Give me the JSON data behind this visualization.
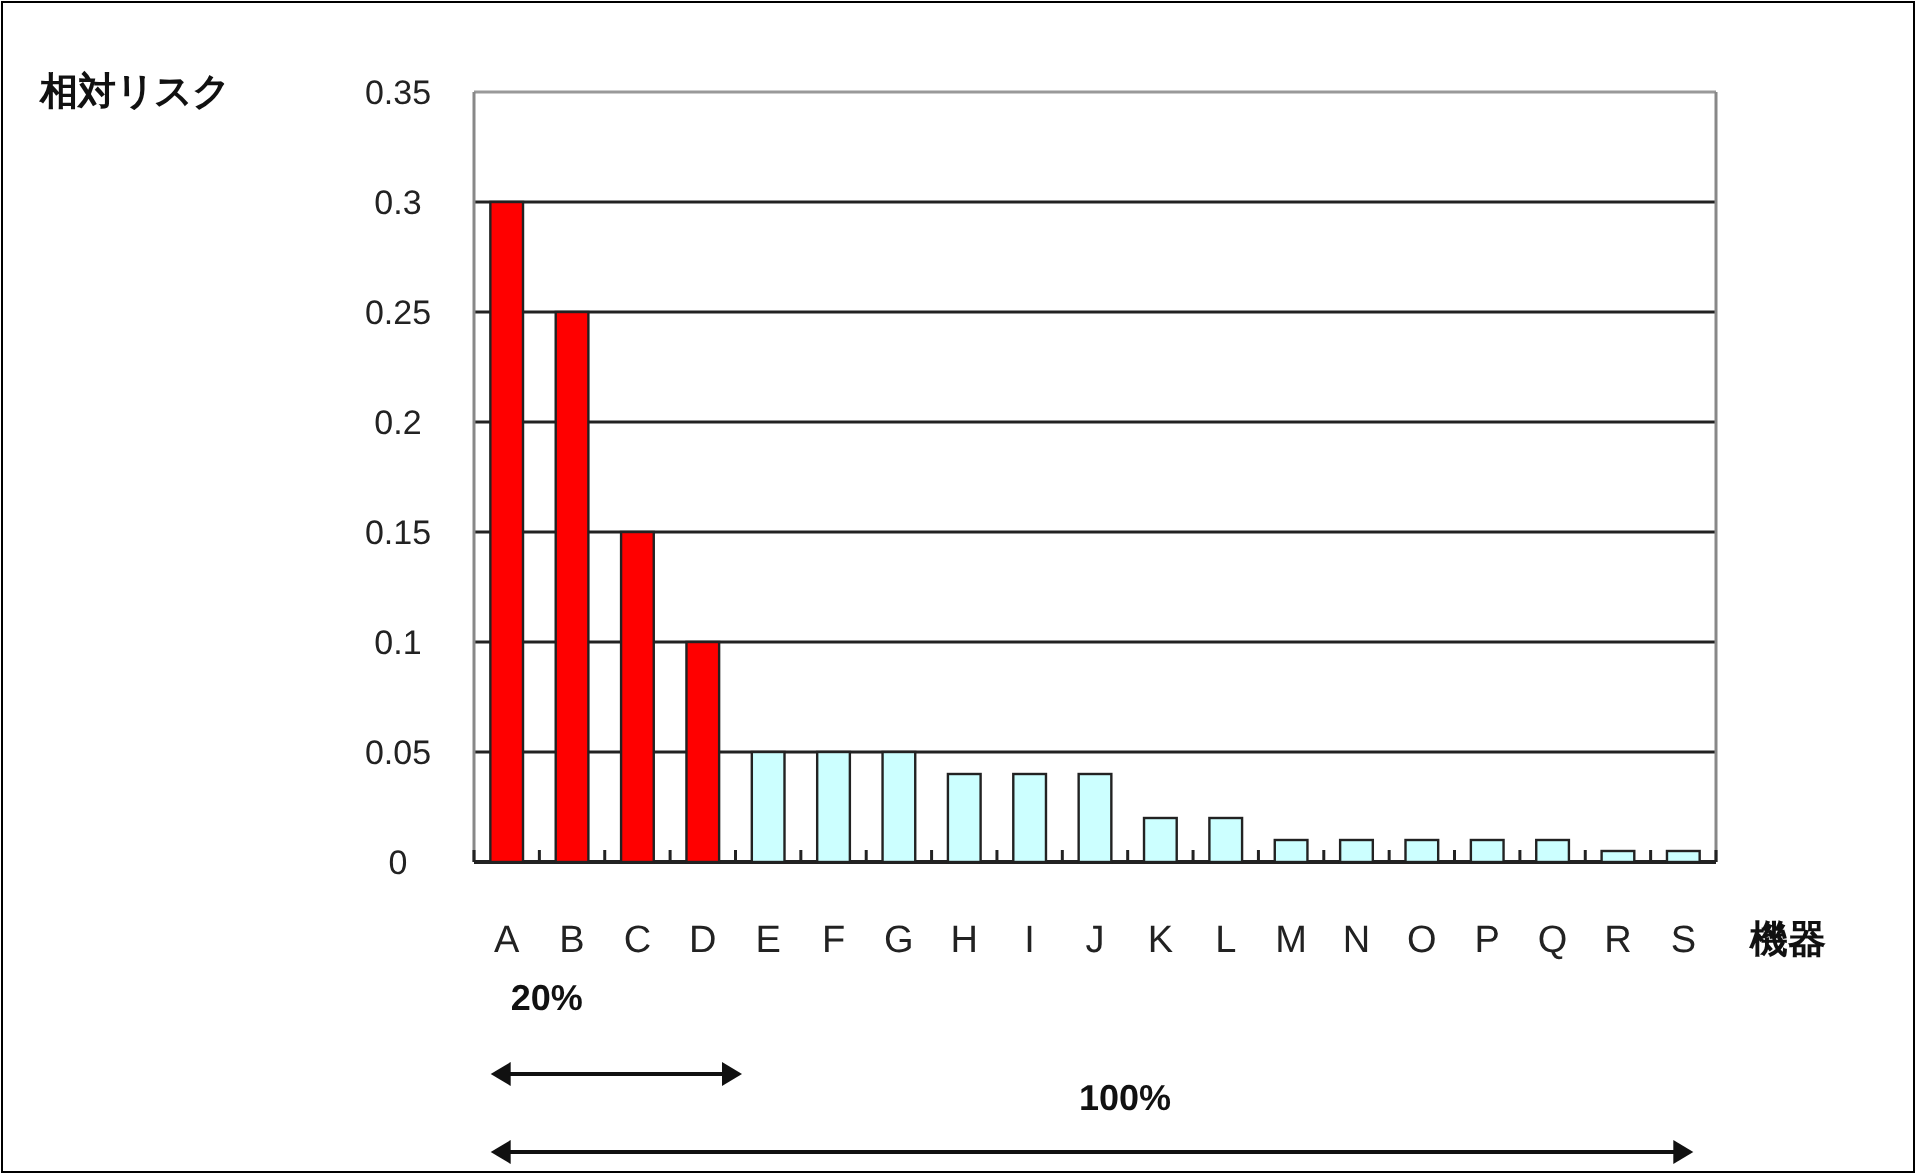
{
  "chart_data": {
    "type": "bar",
    "ylabel": "相対リスク",
    "xlabel": "機器",
    "categories": [
      "A",
      "B",
      "C",
      "D",
      "E",
      "F",
      "G",
      "H",
      "I",
      "J",
      "K",
      "L",
      "M",
      "N",
      "O",
      "P",
      "Q",
      "R",
      "S"
    ],
    "values": [
      0.3,
      0.25,
      0.15,
      0.1,
      0.05,
      0.05,
      0.05,
      0.04,
      0.04,
      0.04,
      0.02,
      0.02,
      0.01,
      0.01,
      0.01,
      0.01,
      0.01,
      0.005,
      0.005
    ],
    "colors": [
      "#ff0000",
      "#ff0000",
      "#ff0000",
      "#ff0000",
      "#ccffff",
      "#ccffff",
      "#ccffff",
      "#ccffff",
      "#ccffff",
      "#ccffff",
      "#ccffff",
      "#ccffff",
      "#ccffff",
      "#ccffff",
      "#ccffff",
      "#ccffff",
      "#ccffff",
      "#ccffff",
      "#ccffff"
    ],
    "ylim": [
      0,
      0.35
    ],
    "yticks": [
      0,
      0.05,
      0.1,
      0.15,
      0.2,
      0.25,
      0.3,
      0.35
    ],
    "grid": "y",
    "annotations": [
      "20%",
      "100%"
    ]
  }
}
